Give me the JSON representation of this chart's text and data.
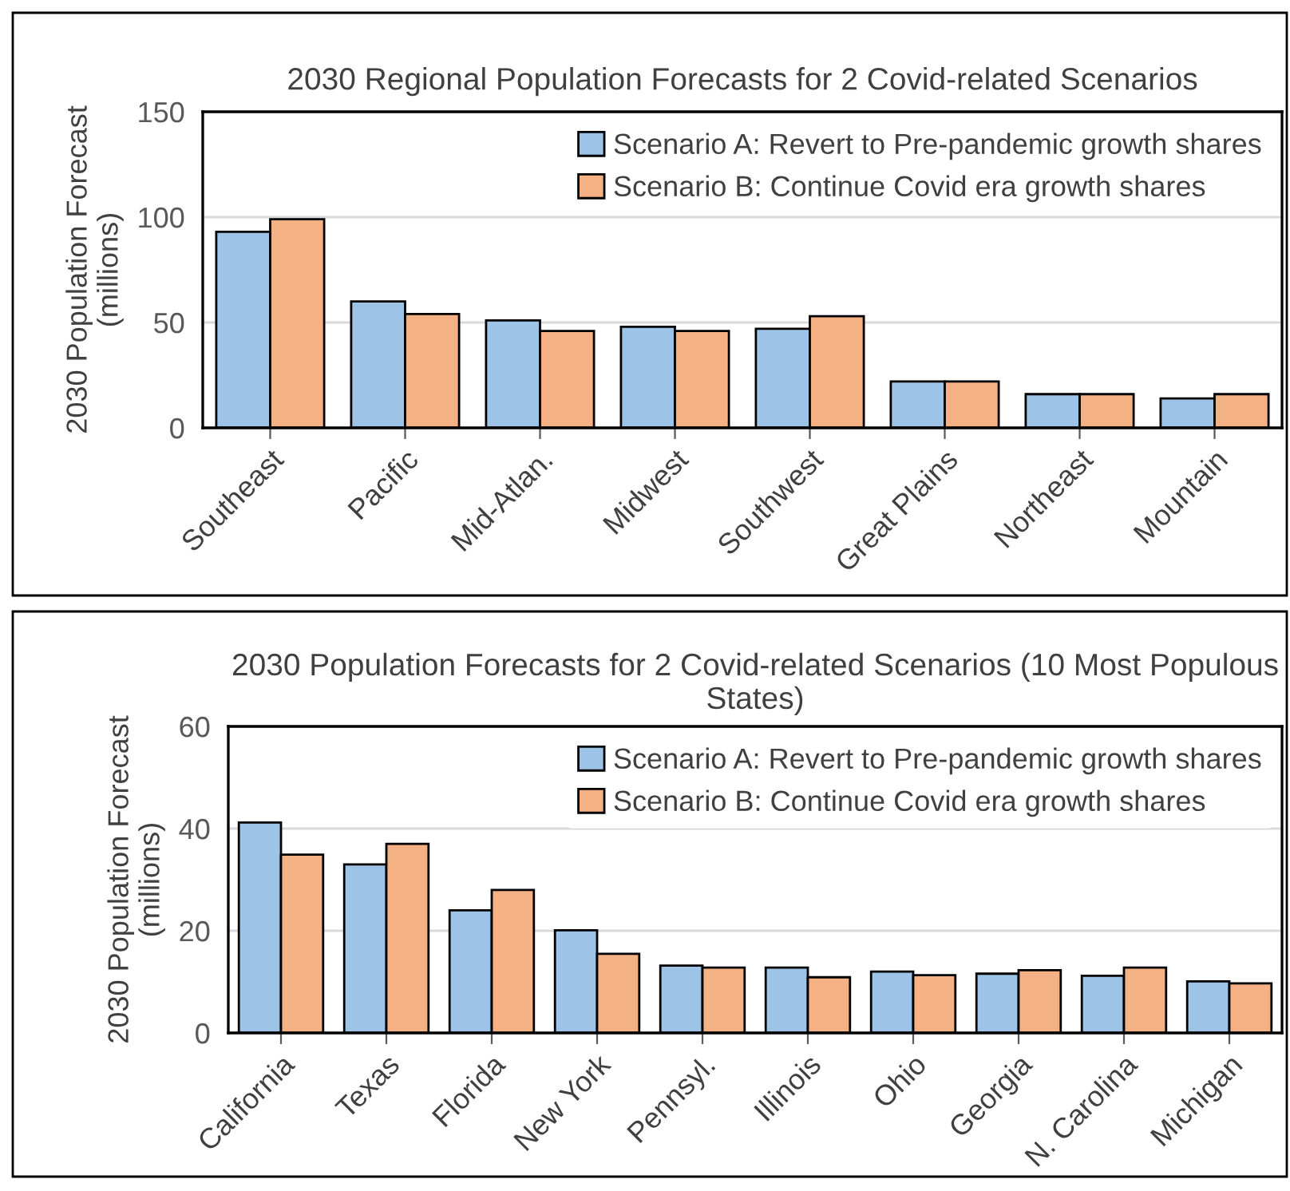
{
  "chart_data": [
    {
      "type": "bar",
      "title": "2030 Regional Population Forecasts for 2 Covid-related Scenarios",
      "ylabel": "2030 Population Forecast\n(millions)",
      "categories": [
        "Southeast",
        "Pacific",
        "Mid-Atlan.",
        "Midwest",
        "Southwest",
        "Great Plains",
        "Northeast",
        "Mountain"
      ],
      "series": [
        {
          "name": "Scenario A: Revert to Pre-pandemic growth shares",
          "color": "#9dc3e6",
          "values": [
            93,
            60,
            51,
            48,
            47,
            22,
            16,
            14
          ]
        },
        {
          "name": "Scenario B: Continue Covid era growth shares",
          "color": "#f4b183",
          "values": [
            99,
            54,
            46,
            46,
            53,
            22,
            16,
            16
          ]
        }
      ],
      "ylim": [
        0,
        150
      ],
      "yticks": [
        0,
        50,
        100,
        150
      ],
      "grid": "y",
      "legend": "top right"
    },
    {
      "type": "bar",
      "title": "2030 Population Forecasts for 2 Covid-related Scenarios (10 Most Populous States)",
      "ylabel": "2030 Population Forecast\n(millions)",
      "categories": [
        "California",
        "Texas",
        "Florida",
        "New York",
        "Pennsyl.",
        "Illinois",
        "Ohio",
        "Georgia",
        "N. Carolina",
        "Michigan"
      ],
      "series": [
        {
          "name": "Scenario A: Revert to Pre-pandemic growth shares",
          "color": "#9dc3e6",
          "values": [
            41.2,
            33,
            24,
            20.1,
            13.2,
            12.8,
            12,
            11.6,
            11.2,
            10.1
          ]
        },
        {
          "name": "Scenario B: Continue Covid era growth shares",
          "color": "#f4b183",
          "values": [
            34.9,
            37,
            28,
            15.5,
            12.8,
            10.9,
            11.3,
            12.3,
            12.8,
            9.7
          ]
        }
      ],
      "ylim": [
        0,
        60
      ],
      "yticks": [
        0,
        20,
        40,
        60
      ],
      "grid": "y",
      "legend": "top right"
    }
  ]
}
